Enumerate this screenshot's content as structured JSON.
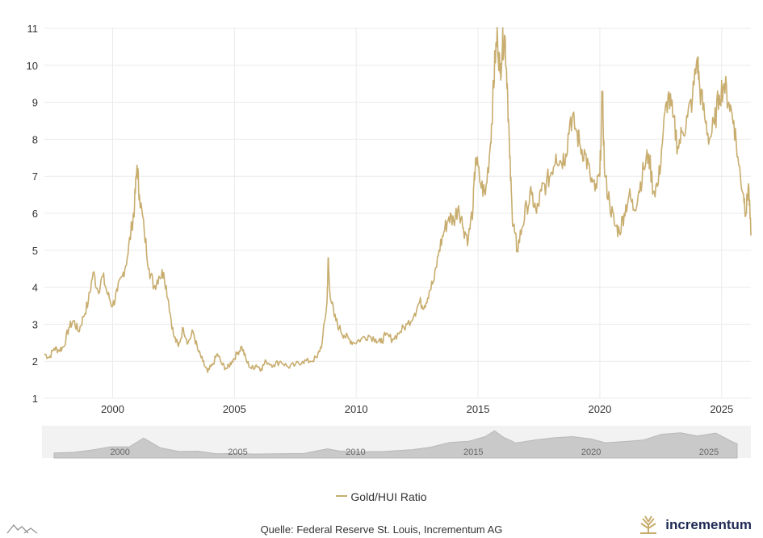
{
  "chart_data": {
    "type": "line",
    "title": "",
    "xlabel": "",
    "ylabel": "",
    "xlim": [
      1997.2,
      2026.2
    ],
    "ylim": [
      1,
      11
    ],
    "yticks": [
      1,
      2,
      3,
      4,
      5,
      6,
      7,
      8,
      9,
      10,
      11
    ],
    "xticks": [
      2000,
      2005,
      2010,
      2015,
      2020,
      2025
    ],
    "grid": true,
    "legend_position": "bottom-center",
    "series": [
      {
        "name": "Gold/HUI Ratio",
        "color": "#c8ad6e",
        "points": [
          [
            1997.2,
            2.2
          ],
          [
            1997.4,
            2.1
          ],
          [
            1997.6,
            2.35
          ],
          [
            1997.8,
            2.3
          ],
          [
            1998.0,
            2.4
          ],
          [
            1998.2,
            2.9
          ],
          [
            1998.4,
            3.1
          ],
          [
            1998.6,
            2.8
          ],
          [
            1998.8,
            3.2
          ],
          [
            1999.0,
            3.6
          ],
          [
            1999.2,
            4.4
          ],
          [
            1999.4,
            3.9
          ],
          [
            1999.6,
            4.3
          ],
          [
            1999.8,
            3.8
          ],
          [
            2000.0,
            3.5
          ],
          [
            2000.2,
            3.9
          ],
          [
            2000.4,
            4.3
          ],
          [
            2000.6,
            4.8
          ],
          [
            2000.8,
            5.7
          ],
          [
            2000.9,
            6.2
          ],
          [
            2001.0,
            7.3
          ],
          [
            2001.1,
            6.5
          ],
          [
            2001.3,
            5.5
          ],
          [
            2001.5,
            4.5
          ],
          [
            2001.7,
            4.0
          ],
          [
            2001.9,
            4.3
          ],
          [
            2002.1,
            4.4
          ],
          [
            2002.3,
            3.6
          ],
          [
            2002.5,
            2.7
          ],
          [
            2002.7,
            2.4
          ],
          [
            2002.9,
            2.9
          ],
          [
            2003.1,
            2.5
          ],
          [
            2003.3,
            2.8
          ],
          [
            2003.5,
            2.3
          ],
          [
            2003.7,
            2.0
          ],
          [
            2003.9,
            1.7
          ],
          [
            2004.1,
            1.9
          ],
          [
            2004.3,
            2.2
          ],
          [
            2004.5,
            1.9
          ],
          [
            2004.7,
            1.8
          ],
          [
            2004.9,
            2.0
          ],
          [
            2005.1,
            2.2
          ],
          [
            2005.3,
            2.4
          ],
          [
            2005.5,
            2.0
          ],
          [
            2005.7,
            1.8
          ],
          [
            2005.9,
            1.9
          ],
          [
            2006.1,
            1.8
          ],
          [
            2006.3,
            2.0
          ],
          [
            2006.6,
            1.9
          ],
          [
            2006.9,
            2.0
          ],
          [
            2007.2,
            1.85
          ],
          [
            2007.5,
            1.9
          ],
          [
            2007.8,
            2.0
          ],
          [
            2008.1,
            2.0
          ],
          [
            2008.4,
            2.1
          ],
          [
            2008.6,
            2.5
          ],
          [
            2008.8,
            3.6
          ],
          [
            2008.85,
            4.8
          ],
          [
            2008.9,
            4.0
          ],
          [
            2009.1,
            3.2
          ],
          [
            2009.3,
            2.9
          ],
          [
            2009.5,
            2.7
          ],
          [
            2009.7,
            2.6
          ],
          [
            2009.9,
            2.5
          ],
          [
            2010.2,
            2.6
          ],
          [
            2010.5,
            2.7
          ],
          [
            2010.8,
            2.6
          ],
          [
            2011.0,
            2.5
          ],
          [
            2011.2,
            2.7
          ],
          [
            2011.5,
            2.6
          ],
          [
            2011.8,
            2.8
          ],
          [
            2012.1,
            3.0
          ],
          [
            2012.4,
            3.3
          ],
          [
            2012.6,
            3.6
          ],
          [
            2012.8,
            3.5
          ],
          [
            2013.0,
            3.9
          ],
          [
            2013.2,
            4.2
          ],
          [
            2013.4,
            5.0
          ],
          [
            2013.6,
            5.5
          ],
          [
            2013.8,
            5.9
          ],
          [
            2014.0,
            5.8
          ],
          [
            2014.2,
            6.2
          ],
          [
            2014.4,
            5.6
          ],
          [
            2014.6,
            5.3
          ],
          [
            2014.8,
            6.2
          ],
          [
            2014.9,
            7.5
          ],
          [
            2015.1,
            6.8
          ],
          [
            2015.3,
            6.5
          ],
          [
            2015.5,
            7.8
          ],
          [
            2015.6,
            9.0
          ],
          [
            2015.7,
            10.2
          ],
          [
            2015.8,
            10.8
          ],
          [
            2015.9,
            9.8
          ],
          [
            2016.0,
            10.5
          ],
          [
            2016.1,
            10.8
          ],
          [
            2016.2,
            9.5
          ],
          [
            2016.3,
            7.5
          ],
          [
            2016.4,
            6.0
          ],
          [
            2016.5,
            5.5
          ],
          [
            2016.6,
            5.0
          ],
          [
            2016.8,
            5.6
          ],
          [
            2017.0,
            6.2
          ],
          [
            2017.2,
            6.5
          ],
          [
            2017.4,
            6.0
          ],
          [
            2017.6,
            6.6
          ],
          [
            2017.8,
            6.8
          ],
          [
            2018.0,
            7.1
          ],
          [
            2018.2,
            7.6
          ],
          [
            2018.4,
            7.4
          ],
          [
            2018.6,
            7.6
          ],
          [
            2018.8,
            8.6
          ],
          [
            2019.0,
            8.3
          ],
          [
            2019.2,
            7.8
          ],
          [
            2019.4,
            7.6
          ],
          [
            2019.6,
            7.0
          ],
          [
            2019.8,
            6.6
          ],
          [
            2020.0,
            7.0
          ],
          [
            2020.1,
            9.3
          ],
          [
            2020.2,
            7.0
          ],
          [
            2020.4,
            6.3
          ],
          [
            2020.6,
            5.7
          ],
          [
            2020.8,
            5.5
          ],
          [
            2021.0,
            6.0
          ],
          [
            2021.2,
            6.5
          ],
          [
            2021.4,
            6.1
          ],
          [
            2021.6,
            6.6
          ],
          [
            2021.8,
            7.2
          ],
          [
            2022.0,
            7.6
          ],
          [
            2022.2,
            6.6
          ],
          [
            2022.4,
            6.8
          ],
          [
            2022.6,
            8.2
          ],
          [
            2022.8,
            9.2
          ],
          [
            2023.0,
            8.6
          ],
          [
            2023.2,
            7.8
          ],
          [
            2023.4,
            8.2
          ],
          [
            2023.6,
            8.6
          ],
          [
            2023.8,
            9.1
          ],
          [
            2024.0,
            10.2
          ],
          [
            2024.1,
            9.4
          ],
          [
            2024.3,
            8.6
          ],
          [
            2024.5,
            8.0
          ],
          [
            2024.7,
            8.4
          ],
          [
            2024.9,
            9.2
          ],
          [
            2025.1,
            9.5
          ],
          [
            2025.3,
            9.0
          ],
          [
            2025.5,
            8.5
          ],
          [
            2025.7,
            7.3
          ],
          [
            2025.9,
            6.5
          ],
          [
            2026.0,
            6.0
          ],
          [
            2026.1,
            6.8
          ],
          [
            2026.2,
            5.4
          ]
        ]
      }
    ],
    "navigator": {
      "xticks": [
        2000,
        2005,
        2010,
        2015,
        2020,
        2025
      ]
    }
  },
  "legend": {
    "label": "Gold/HUI Ratio"
  },
  "footer": {
    "source": "Quelle: Federal Reserve St. Louis, Incrementum AG",
    "brand": "incrementum"
  }
}
